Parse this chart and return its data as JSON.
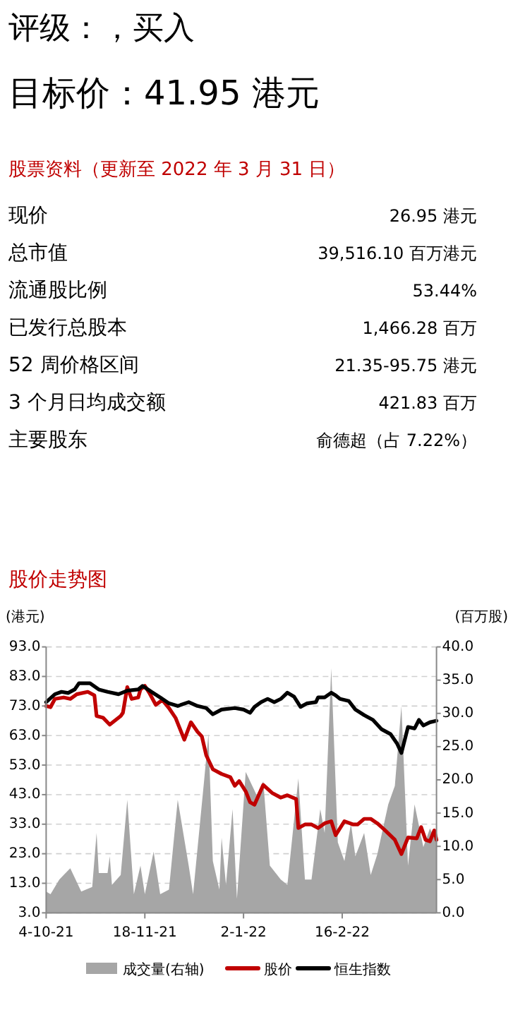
{
  "chart_data": [
    {
      "type": "other",
      "title": "评级：，买入",
      "subtitle": "目标价：41.95 港元",
      "annotations": [
        "股票资料（更新至 2022 年 3 月 31 日）",
        "现价",
        "26.95 港元",
        "总市值",
        "39,516.10 百万港元",
        "流通股比例",
        "53.44%",
        "已发行总股本",
        "1,466.28 百万",
        "52 周价格区间",
        "21.35-95.75 港元",
        "3 个月日均成交额",
        "421.83 百万",
        "主要股东",
        "俞德超（占 7.22%）"
      ]
    },
    {
      "type": "line",
      "title": "股价走势图",
      "ylabel": "(港元)",
      "y2label": "(百万股)",
      "grid": "y",
      "legend": "bottom",
      "xlim": [
        "2021-10-04",
        "2022-03-31"
      ],
      "xticks": [
        {
          "value": "2021-10-04",
          "label": "4-10-21"
        },
        {
          "value": "2021-11-18",
          "label": "18-11-21"
        },
        {
          "value": "2022-01-02",
          "label": "2-1-22"
        },
        {
          "value": "2022-02-16",
          "label": "16-2-22"
        }
      ],
      "ylim": [
        3,
        93
      ],
      "yticks": [
        {
          "value": 3,
          "label": "3.0"
        },
        {
          "value": 13,
          "label": "13.0"
        },
        {
          "value": 23,
          "label": "23.0"
        },
        {
          "value": 33,
          "label": "33.0"
        },
        {
          "value": 43,
          "label": "43.0"
        },
        {
          "value": 53,
          "label": "53.0"
        },
        {
          "value": 63,
          "label": "63.0"
        },
        {
          "value": 73,
          "label": "73.0"
        },
        {
          "value": 83,
          "label": "83.0"
        },
        {
          "value": 93,
          "label": "93.0"
        }
      ],
      "y2lim": [
        0,
        40
      ],
      "y2ticks": [
        {
          "value": 0,
          "label": "0.0"
        },
        {
          "value": 5,
          "label": "5.0"
        },
        {
          "value": 10,
          "label": "10.0"
        },
        {
          "value": 15,
          "label": "15.0"
        },
        {
          "value": 20,
          "label": "20.0"
        },
        {
          "value": 25,
          "label": "25.0"
        },
        {
          "value": 30,
          "label": "30.0"
        },
        {
          "value": 35,
          "label": "35.0"
        },
        {
          "value": 40,
          "label": "40.0"
        }
      ],
      "series": [
        {
          "name": "成交量(右轴)",
          "type": "area",
          "axis": "y2",
          "color": "#a6a6a6",
          "x": [
            "2021-10-04",
            "2021-10-06",
            "2021-10-10",
            "2021-10-12",
            "2021-10-15",
            "2021-10-18",
            "2021-10-20",
            "2021-10-25",
            "2021-10-27",
            "2021-10-28",
            "2021-11-01",
            "2021-11-02",
            "2021-11-03",
            "2021-11-07",
            "2021-11-10",
            "2021-11-13",
            "2021-11-16",
            "2021-11-18",
            "2021-11-22",
            "2021-11-25",
            "2021-11-29",
            "2021-12-03",
            "2021-12-08",
            "2021-12-10",
            "2021-12-15",
            "2021-12-17",
            "2021-12-19",
            "2021-12-22",
            "2021-12-23",
            "2021-12-25",
            "2021-12-28",
            "2021-12-30",
            "2022-01-03",
            "2022-01-08",
            "2022-01-11",
            "2022-01-14",
            "2022-01-19",
            "2022-01-22",
            "2022-01-27",
            "2022-01-30",
            "2022-02-02",
            "2022-02-06",
            "2022-02-08",
            "2022-02-11",
            "2022-02-14",
            "2022-02-17",
            "2022-02-20",
            "2022-02-22",
            "2022-02-26",
            "2022-03-01",
            "2022-03-04",
            "2022-03-09",
            "2022-03-12",
            "2022-03-15",
            "2022-03-18",
            "2022-03-21",
            "2022-03-25",
            "2022-03-28",
            "2022-03-31"
          ],
          "values": [
            3.2,
            2.8,
            5,
            5.7,
            6.7,
            4.6,
            3.2,
            3.9,
            12,
            6,
            6,
            8.5,
            4.2,
            5.7,
            17,
            2.8,
            7.1,
            2.8,
            9.2,
            2.8,
            3.5,
            17,
            7.1,
            2.8,
            19.8,
            26.9,
            7.8,
            3.5,
            11.3,
            4.2,
            15.6,
            2.1,
            21.2,
            17.7,
            19.8,
            7.1,
            5,
            4.2,
            20.2,
            5,
            5,
            15.6,
            12,
            36.8,
            10.6,
            7.8,
            13.4,
            8.5,
            12,
            5.7,
            8.8,
            16.3,
            19.1,
            31.1,
            7.1,
            16.3,
            9.9,
            12.7,
            10.6
          ]
        },
        {
          "name": "股价",
          "type": "line",
          "color": "#c00000",
          "x": [
            "2021-10-04",
            "2021-10-06",
            "2021-10-08",
            "2021-10-12",
            "2021-10-15",
            "2021-10-18",
            "2021-10-23",
            "2021-10-26",
            "2021-10-27",
            "2021-10-30",
            "2021-11-02",
            "2021-11-07",
            "2021-11-08",
            "2021-11-10",
            "2021-11-12",
            "2021-11-15",
            "2021-11-16",
            "2021-11-18",
            "2021-11-20",
            "2021-11-23",
            "2021-11-26",
            "2021-11-29",
            "2021-12-02",
            "2021-12-06",
            "2021-12-09",
            "2021-12-12",
            "2021-12-14",
            "2021-12-16",
            "2021-12-19",
            "2021-12-23",
            "2021-12-27",
            "2021-12-29",
            "2021-12-31",
            "2022-01-03",
            "2022-01-05",
            "2022-01-07",
            "2022-01-11",
            "2022-01-15",
            "2022-01-19",
            "2022-01-22",
            "2022-01-26",
            "2022-01-27",
            "2022-01-30",
            "2022-02-02",
            "2022-02-05",
            "2022-02-08",
            "2022-02-11",
            "2022-02-13",
            "2022-02-17",
            "2022-02-21",
            "2022-02-23",
            "2022-02-26",
            "2022-03-01",
            "2022-03-04",
            "2022-03-07",
            "2022-03-12",
            "2022-03-15",
            "2022-03-18",
            "2022-03-22",
            "2022-03-24",
            "2022-03-26",
            "2022-03-28",
            "2022-03-30",
            "2022-03-31"
          ],
          "values": [
            73,
            72.6,
            75.4,
            75.9,
            75.4,
            77,
            77.8,
            76.6,
            69.6,
            69,
            66.7,
            69.6,
            70.7,
            79.4,
            75.4,
            75.9,
            78.6,
            79.8,
            77.5,
            73.4,
            75,
            72.3,
            69,
            61.6,
            67.5,
            64.3,
            62.7,
            56.3,
            51.6,
            50,
            48.9,
            46,
            47.6,
            44.1,
            40.4,
            39.6,
            46.3,
            43.6,
            42,
            42.8,
            41.5,
            31.7,
            32.9,
            32.9,
            31.7,
            33.3,
            34,
            29.3,
            34,
            32.9,
            32.9,
            34.8,
            34.8,
            33.3,
            31.3,
            27.7,
            22.9,
            28.5,
            28.2,
            32,
            27.7,
            27.2,
            30.9,
            27.7
          ]
        },
        {
          "name": "恒生指数",
          "type": "line",
          "color": "#000000",
          "x": [
            "2021-10-04",
            "2021-10-08",
            "2021-10-11",
            "2021-10-14",
            "2021-10-17",
            "2021-10-19",
            "2021-10-24",
            "2021-10-28",
            "2021-11-01",
            "2021-11-06",
            "2021-11-10",
            "2021-11-15",
            "2021-11-17",
            "2021-11-21",
            "2021-11-25",
            "2021-11-29",
            "2021-12-03",
            "2021-12-08",
            "2021-12-12",
            "2021-12-16",
            "2021-12-19",
            "2021-12-23",
            "2021-12-29",
            "2022-01-02",
            "2022-01-05",
            "2022-01-07",
            "2022-01-10",
            "2022-01-13",
            "2022-01-16",
            "2022-01-19",
            "2022-01-22",
            "2022-01-25",
            "2022-01-28",
            "2022-01-31",
            "2022-02-04",
            "2022-02-05",
            "2022-02-08",
            "2022-02-11",
            "2022-02-13",
            "2022-02-15",
            "2022-02-19",
            "2022-02-22",
            "2022-02-26",
            "2022-03-02",
            "2022-03-06",
            "2022-03-10",
            "2022-03-13",
            "2022-03-15",
            "2022-03-18",
            "2022-03-21",
            "2022-03-23",
            "2022-03-25",
            "2022-03-28",
            "2022-03-31"
          ],
          "values": [
            74.3,
            77,
            77.8,
            77.4,
            78.6,
            80.7,
            80.7,
            78.6,
            77.8,
            77,
            78.2,
            78.6,
            79.8,
            77.8,
            75.9,
            73.9,
            73,
            74.3,
            73,
            72.3,
            70.2,
            71.8,
            72.3,
            71.8,
            70.7,
            72.7,
            74.3,
            75.4,
            74.3,
            75.4,
            77.5,
            76.2,
            72.7,
            73.9,
            74.3,
            75.9,
            75.9,
            77.5,
            76.6,
            75.4,
            74.7,
            71.8,
            69.9,
            68.3,
            65.1,
            63.5,
            60.3,
            57.1,
            65.9,
            65.4,
            68.3,
            66.4,
            67.5,
            68
          ]
        }
      ]
    }
  ]
}
